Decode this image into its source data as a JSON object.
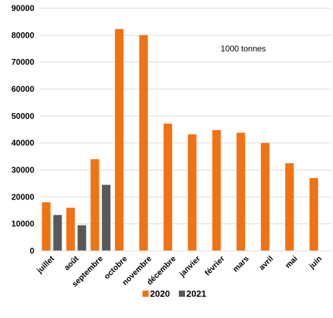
{
  "chart_data": {
    "type": "bar",
    "categories": [
      "juillet",
      "août",
      "septembre",
      "octobre",
      "novembre",
      "décembre",
      "janvier",
      "février",
      "mars",
      "avril",
      "mai",
      "juin"
    ],
    "series": [
      {
        "name": "2020",
        "color": "#F07213",
        "values": [
          18000,
          16000,
          34000,
          82300,
          80000,
          47200,
          43200,
          44800,
          43800,
          40000,
          32500,
          27000
        ]
      },
      {
        "name": "2021",
        "color": "#595959",
        "values": [
          13300,
          9500,
          24500,
          null,
          null,
          null,
          null,
          null,
          null,
          null,
          null,
          null
        ]
      }
    ],
    "ylim": [
      0,
      90000
    ],
    "yticks": [
      0,
      10000,
      20000,
      30000,
      40000,
      50000,
      60000,
      70000,
      80000,
      90000
    ],
    "annotation": "1000 tonnes",
    "grid": true,
    "legend_position": "bottom"
  }
}
